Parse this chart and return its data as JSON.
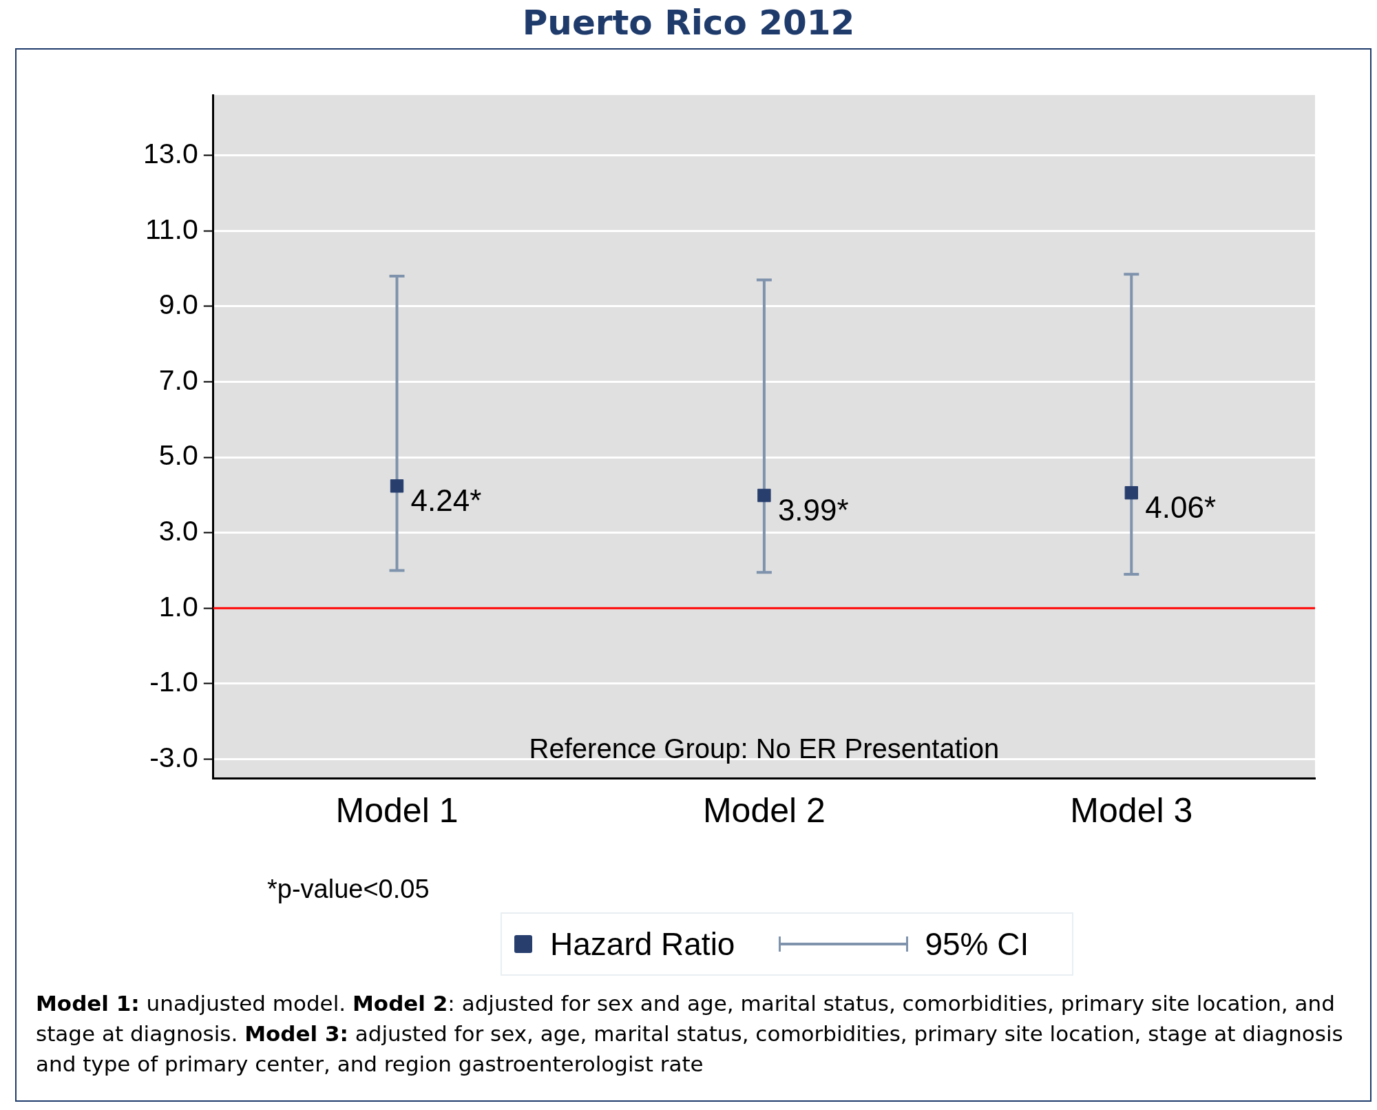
{
  "chart_data": {
    "type": "scatter",
    "title": "Puerto Rico 2012",
    "categories": [
      "Model 1",
      "Model 2",
      "Model 3"
    ],
    "series": [
      {
        "name": "Hazard Ratio",
        "color": "#283f6e",
        "values": [
          4.24,
          3.99,
          4.06
        ],
        "errors": [
          [
            2.0,
            9.8
          ],
          [
            1.95,
            9.7
          ],
          [
            1.9,
            9.85
          ]
        ],
        "value_labels": [
          "4.24*",
          "3.99*",
          "4.06*"
        ]
      }
    ],
    "ylim": [
      -3.5,
      14.6
    ],
    "yticks": [
      {
        "value": -3,
        "label": "-3.0"
      },
      {
        "value": -1,
        "label": "-1.0"
      },
      {
        "value": 1,
        "label": "1.0"
      },
      {
        "value": 3,
        "label": "3.0"
      },
      {
        "value": 5,
        "label": "5.0"
      },
      {
        "value": 7,
        "label": "7.0"
      },
      {
        "value": 9,
        "label": "9.0"
      },
      {
        "value": 11,
        "label": "11.0"
      },
      {
        "value": 13,
        "label": "13.0"
      }
    ],
    "grid": "y",
    "marker": "square",
    "legend": "bottom",
    "ref_lines": [
      {
        "axis": "y",
        "value": 1,
        "color": "#ff0000"
      }
    ],
    "annotations": [
      "Reference Group: No ER Presentation",
      "*p-value<0.05",
      "95% CI",
      "Model 1:",
      " unadjusted model. ",
      "Model 2",
      ": adjusted for sex and age, marital status, comorbidities, primary site location, and stage at diagnosis.  ",
      "Model 3:",
      " adjusted for sex, age, marital status, comorbidities, primary site location, stage at diagnosis and type of primary center, and region gastroenterologist rate"
    ]
  }
}
